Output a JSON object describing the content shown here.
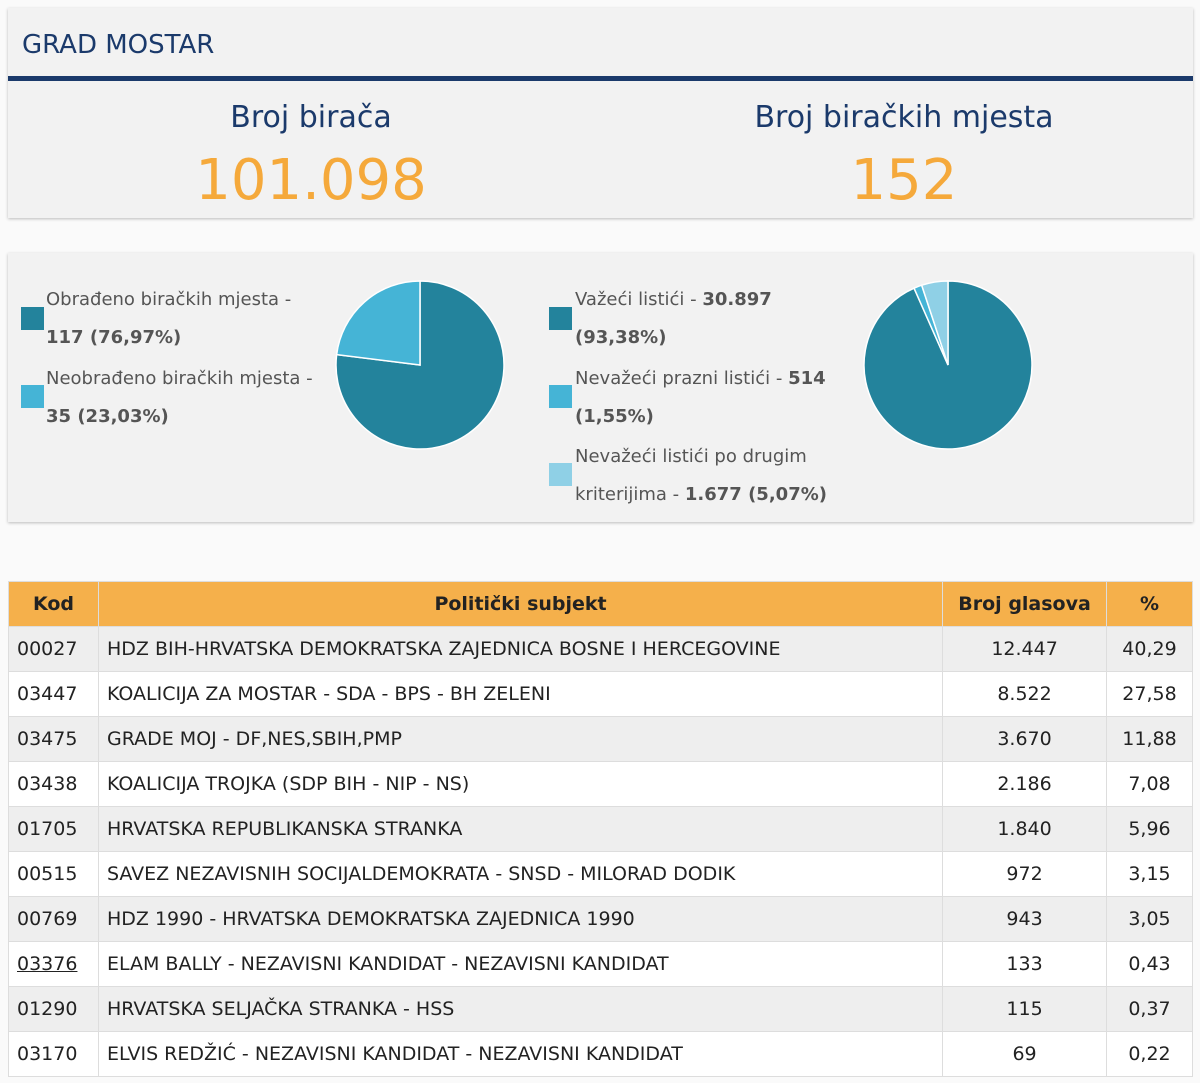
{
  "header": {
    "title": "GRAD MOSTAR"
  },
  "stats": {
    "voters_label": "Broj birača",
    "voters_value": "101.098",
    "stations_label": "Broj biračkih mjesta",
    "stations_value": "152"
  },
  "colors": {
    "dark": "#23839c",
    "medium": "#45b4d6",
    "light": "#8fd0e6",
    "accent": "#f5a93b",
    "brand": "#1b3a6b"
  },
  "chart_data": [
    {
      "type": "pie",
      "slices": [
        {
          "label_main": "Obrađeno biračkih mjesta -",
          "label_value": "117 (76,97%)",
          "value": 117,
          "percent": 76.97
        },
        {
          "label_main": "Neobrađeno biračkih mjesta -",
          "label_value": "35 (23,03%)",
          "value": 35,
          "percent": 23.03
        }
      ]
    },
    {
      "type": "pie",
      "slices": [
        {
          "label_pre": "Važeći listići - ",
          "label_bold": "30.897",
          "label_line2": "(93,38%)",
          "value": 30897,
          "percent": 93.38
        },
        {
          "label_pre": "Nevažeći prazni listići - ",
          "label_bold": "514",
          "label_line2": "(1,55%)",
          "value": 514,
          "percent": 1.55
        },
        {
          "label_pre": "Nevažeći listići po drugim",
          "label_line2_pre": "kriterijima - ",
          "label_line2": "1.677 (5,07%)",
          "value": 1677,
          "percent": 5.07
        }
      ]
    }
  ],
  "table": {
    "headers": [
      "Kod",
      "Politički subjekt",
      "Broj glasova",
      "%"
    ],
    "rows": [
      {
        "code": "00027",
        "party": "HDZ BIH-HRVATSKA DEMOKRATSKA ZAJEDNICA BOSNE I HERCEGOVINE",
        "votes": "12.447",
        "pct": "40,29"
      },
      {
        "code": "03447",
        "party": "KOALICIJA ZA MOSTAR - SDA - BPS - BH ZELENI",
        "votes": "8.522",
        "pct": "27,58"
      },
      {
        "code": "03475",
        "party": "GRADE MOJ - DF,NES,SBIH,PMP",
        "votes": "3.670",
        "pct": "11,88"
      },
      {
        "code": "03438",
        "party": "KOALICIJA TROJKA (SDP BIH - NIP - NS)",
        "votes": "2.186",
        "pct": "7,08"
      },
      {
        "code": "01705",
        "party": "HRVATSKA REPUBLIKANSKA STRANKA",
        "votes": "1.840",
        "pct": "5,96"
      },
      {
        "code": "00515",
        "party": "SAVEZ NEZAVISNIH SOCIJALDEMOKRATA - SNSD - MILORAD DODIK",
        "votes": "972",
        "pct": "3,15"
      },
      {
        "code": "00769",
        "party": "HDZ 1990 - HRVATSKA DEMOKRATSKA ZAJEDNICA 1990",
        "votes": "943",
        "pct": "3,05"
      },
      {
        "code": "03376",
        "party": "ELAM BALLY - NEZAVISNI KANDIDAT - NEZAVISNI KANDIDAT",
        "votes": "133",
        "pct": "0,43"
      },
      {
        "code": "01290",
        "party": "HRVATSKA SELJAČKA STRANKA - HSS",
        "votes": "115",
        "pct": "0,37"
      },
      {
        "code": "03170",
        "party": "ELVIS REDŽIĆ - NEZAVISNI KANDIDAT - NEZAVISNI KANDIDAT",
        "votes": "69",
        "pct": "0,22"
      }
    ]
  }
}
